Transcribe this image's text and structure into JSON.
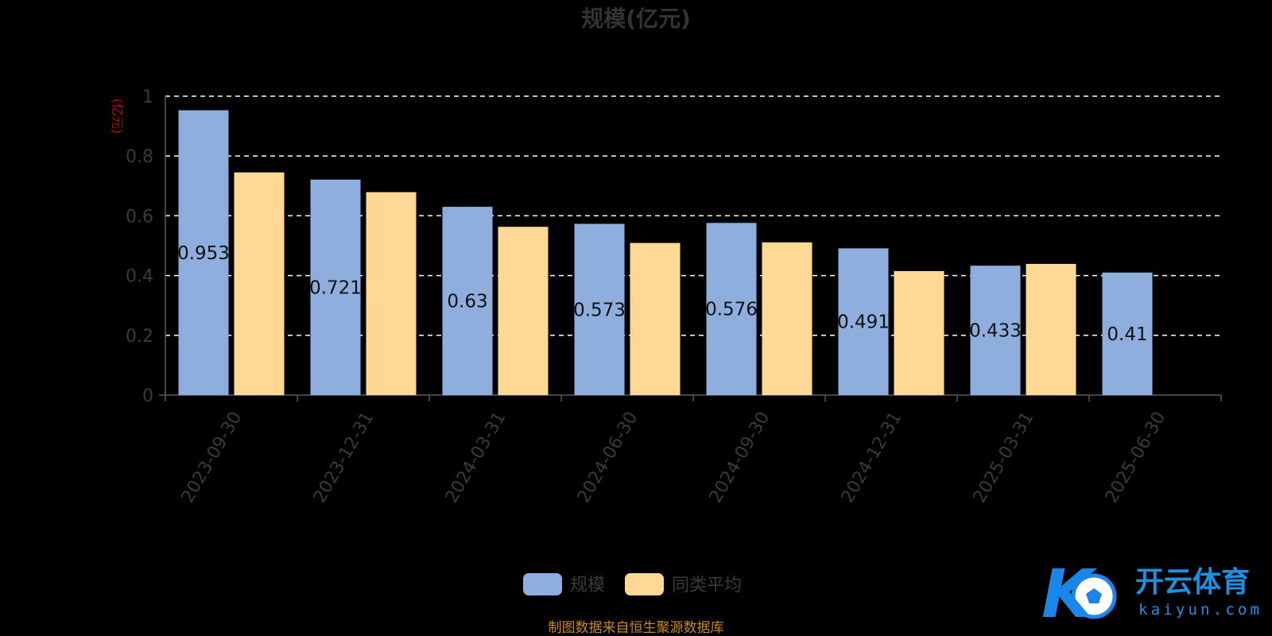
{
  "chart_data": {
    "type": "bar",
    "title": "规模(亿元)",
    "ylabel": "(亿元)",
    "categories": [
      "2023-09-30",
      "2023-12-31",
      "2024-03-31",
      "2024-06-30",
      "2024-09-30",
      "2024-12-31",
      "2025-03-31",
      "2025-06-30"
    ],
    "series": [
      {
        "name": "规模",
        "values": [
          0.953,
          0.721,
          0.63,
          0.573,
          0.576,
          0.491,
          0.433,
          0.41
        ],
        "color": "#8eaede",
        "show_labels": true
      },
      {
        "name": "同类平均",
        "values": [
          0.745,
          0.679,
          0.563,
          0.509,
          0.511,
          0.415,
          0.439,
          null
        ],
        "color": "#ffd896",
        "show_labels": false
      }
    ],
    "ylim": [
      0,
      1
    ],
    "yticks": [
      "0",
      "0.2",
      "0.4",
      "0.6",
      "0.8",
      "1"
    ],
    "grid": true,
    "legend_position": "bottom"
  },
  "source_note": "制图数据来自恒生聚源数据库",
  "watermark": {
    "cn": "开云体育",
    "en": "kaiyun.com",
    "mark": "K"
  },
  "colors": {
    "background": "#000000",
    "axis": "#5a5a5a",
    "grid": "#ffffff",
    "unit": "#cc0000",
    "source": "#c8891f",
    "logo": "#1f8fe0"
  }
}
